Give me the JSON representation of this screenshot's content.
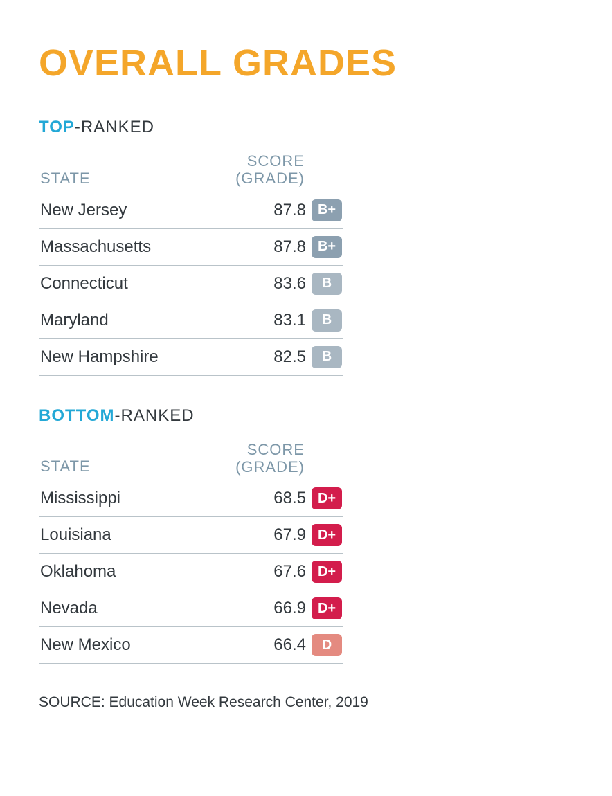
{
  "title": "OVERALL GRADES",
  "title_color": "#f4a62a",
  "accent_color": "#23a8d6",
  "text_color": "#33393e",
  "header_text_color": "#7d97a8",
  "rule_color": "#b9c3c9",
  "columns": {
    "state": "STATE",
    "score_line1": "SCORE",
    "score_line2": "(GRADE)"
  },
  "sections": [
    {
      "heading_em": "TOP",
      "heading_rest": "-RANKED",
      "badge_colors": {
        "primary": "#8ca0b0",
        "alt": "#a9b7c2"
      },
      "rows": [
        {
          "state": "New Jersey",
          "score": "87.8",
          "grade": "B+",
          "badge_color": "#8ca0b0"
        },
        {
          "state": "Massachusetts",
          "score": "87.8",
          "grade": "B+",
          "badge_color": "#8ca0b0"
        },
        {
          "state": "Connecticut",
          "score": "83.6",
          "grade": "B",
          "badge_color": "#a9b7c2"
        },
        {
          "state": "Maryland",
          "score": "83.1",
          "grade": "B",
          "badge_color": "#a9b7c2"
        },
        {
          "state": "New Hampshire",
          "score": "82.5",
          "grade": "B",
          "badge_color": "#a9b7c2"
        }
      ]
    },
    {
      "heading_em": "BOTTOM",
      "heading_rest": "-RANKED",
      "badge_colors": {
        "primary": "#d31d4c",
        "alt": "#e48a80"
      },
      "rows": [
        {
          "state": "Mississippi",
          "score": "68.5",
          "grade": "D+",
          "badge_color": "#d31d4c"
        },
        {
          "state": "Louisiana",
          "score": "67.9",
          "grade": "D+",
          "badge_color": "#d31d4c"
        },
        {
          "state": "Oklahoma",
          "score": "67.6",
          "grade": "D+",
          "badge_color": "#d31d4c"
        },
        {
          "state": "Nevada",
          "score": "66.9",
          "grade": "D+",
          "badge_color": "#d31d4c"
        },
        {
          "state": "New Mexico",
          "score": "66.4",
          "grade": "D",
          "badge_color": "#e48a80"
        }
      ]
    }
  ],
  "source": "SOURCE: Education Week Research Center, 2019"
}
